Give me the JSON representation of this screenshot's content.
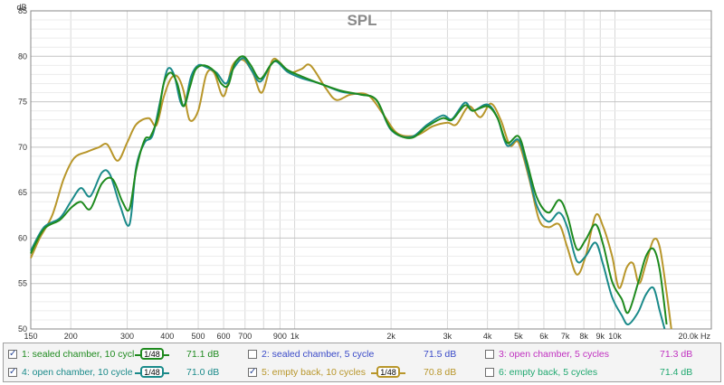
{
  "chart_data": {
    "type": "line",
    "title": "SPL",
    "y_unit_label": "dB",
    "x_scale": "log",
    "xlim": [
      150,
      20000
    ],
    "ylim": [
      50,
      85
    ],
    "y_ticks": [
      50,
      55,
      60,
      65,
      70,
      75,
      80,
      85
    ],
    "x_ticks": [
      {
        "value": 150,
        "label": "150"
      },
      {
        "value": 200,
        "label": "200"
      },
      {
        "value": 300,
        "label": "300"
      },
      {
        "value": 400,
        "label": "400"
      },
      {
        "value": 500,
        "label": "500"
      },
      {
        "value": 600,
        "label": "600"
      },
      {
        "value": 700,
        "label": "700"
      },
      {
        "value": 900,
        "label": "900"
      },
      {
        "value": 1000,
        "label": "1k"
      },
      {
        "value": 2000,
        "label": "2k"
      },
      {
        "value": 3000,
        "label": "3k"
      },
      {
        "value": 4000,
        "label": "4k"
      },
      {
        "value": 5000,
        "label": "5k"
      },
      {
        "value": 6000,
        "label": "6k"
      },
      {
        "value": 7000,
        "label": "7k"
      },
      {
        "value": 8000,
        "label": "8k"
      },
      {
        "value": 9000,
        "label": "9k"
      },
      {
        "value": 10000,
        "label": "10k"
      },
      {
        "value": 20000,
        "label": "20.0k Hz"
      }
    ],
    "grid": true,
    "series": [
      {
        "name": "1: sealed chamber, 10 cycl",
        "color": "#1e8a1e",
        "points": [
          [
            150,
            58.3
          ],
          [
            165,
            61.0
          ],
          [
            185,
            62.0
          ],
          [
            200,
            63.3
          ],
          [
            215,
            64.0
          ],
          [
            230,
            63.2
          ],
          [
            250,
            66.0
          ],
          [
            270,
            66.5
          ],
          [
            290,
            64.0
          ],
          [
            305,
            63.2
          ],
          [
            320,
            67.5
          ],
          [
            340,
            70.8
          ],
          [
            355,
            71.2
          ],
          [
            375,
            73.5
          ],
          [
            390,
            77.0
          ],
          [
            410,
            78.2
          ],
          [
            430,
            77.0
          ],
          [
            450,
            74.5
          ],
          [
            470,
            76.5
          ],
          [
            490,
            78.5
          ],
          [
            520,
            79.0
          ],
          [
            560,
            78.4
          ],
          [
            590,
            77.0
          ],
          [
            620,
            76.8
          ],
          [
            650,
            79.2
          ],
          [
            690,
            80.0
          ],
          [
            730,
            79.0
          ],
          [
            780,
            77.5
          ],
          [
            840,
            79.0
          ],
          [
            880,
            79.5
          ],
          [
            950,
            78.5
          ],
          [
            1050,
            77.8
          ],
          [
            1200,
            77.0
          ],
          [
            1400,
            76.2
          ],
          [
            1600,
            75.8
          ],
          [
            1800,
            75.2
          ],
          [
            2000,
            72.0
          ],
          [
            2300,
            71.0
          ],
          [
            2600,
            72.3
          ],
          [
            2900,
            73.2
          ],
          [
            3100,
            73.0
          ],
          [
            3400,
            74.6
          ],
          [
            3600,
            74.0
          ],
          [
            4000,
            74.5
          ],
          [
            4300,
            73.2
          ],
          [
            4600,
            70.5
          ],
          [
            5000,
            71.2
          ],
          [
            5300,
            68.5
          ],
          [
            5700,
            64.5
          ],
          [
            6200,
            62.8
          ],
          [
            6700,
            64.2
          ],
          [
            7100,
            62.5
          ],
          [
            7600,
            58.8
          ],
          [
            8100,
            59.8
          ],
          [
            8700,
            61.5
          ],
          [
            9200,
            59.2
          ],
          [
            9800,
            55.2
          ],
          [
            10500,
            53.3
          ],
          [
            11000,
            51.8
          ],
          [
            11800,
            55.0
          ],
          [
            12500,
            58.0
          ],
          [
            13200,
            58.8
          ],
          [
            13800,
            56.5
          ],
          [
            14500,
            50.5
          ]
        ]
      },
      {
        "name": "2: sealed chamber, 5 cycle",
        "color": "#3a4ac8",
        "points": []
      },
      {
        "name": "3: open chamber, 5 cycles",
        "color": "#c030c0",
        "points": []
      },
      {
        "name": "4: open chamber, 10 cycle",
        "color": "#1a8a8a",
        "points": [
          [
            150,
            58.6
          ],
          [
            165,
            61.2
          ],
          [
            185,
            62.2
          ],
          [
            200,
            64.0
          ],
          [
            215,
            65.5
          ],
          [
            230,
            64.6
          ],
          [
            250,
            67.2
          ],
          [
            265,
            67.0
          ],
          [
            285,
            63.6
          ],
          [
            305,
            61.5
          ],
          [
            320,
            67.8
          ],
          [
            340,
            70.5
          ],
          [
            360,
            71.3
          ],
          [
            380,
            75.0
          ],
          [
            400,
            78.5
          ],
          [
            420,
            78.0
          ],
          [
            440,
            75.0
          ],
          [
            455,
            74.8
          ],
          [
            475,
            77.8
          ],
          [
            500,
            79.0
          ],
          [
            530,
            78.8
          ],
          [
            570,
            78.2
          ],
          [
            610,
            77.0
          ],
          [
            640,
            78.5
          ],
          [
            690,
            79.8
          ],
          [
            730,
            78.6
          ],
          [
            780,
            77.2
          ],
          [
            840,
            79.0
          ],
          [
            880,
            79.4
          ],
          [
            950,
            78.3
          ],
          [
            1050,
            77.6
          ],
          [
            1200,
            77.0
          ],
          [
            1400,
            76.1
          ],
          [
            1600,
            75.8
          ],
          [
            1800,
            75.2
          ],
          [
            2000,
            71.9
          ],
          [
            2300,
            71.1
          ],
          [
            2600,
            72.5
          ],
          [
            2900,
            73.5
          ],
          [
            3100,
            73.1
          ],
          [
            3400,
            74.9
          ],
          [
            3600,
            74.0
          ],
          [
            4000,
            74.7
          ],
          [
            4300,
            73.2
          ],
          [
            4600,
            70.2
          ],
          [
            5000,
            70.8
          ],
          [
            5300,
            68.0
          ],
          [
            5700,
            63.6
          ],
          [
            6200,
            61.8
          ],
          [
            6700,
            62.8
          ],
          [
            7100,
            61.2
          ],
          [
            7600,
            57.5
          ],
          [
            8100,
            58.0
          ],
          [
            8700,
            59.5
          ],
          [
            9200,
            57.0
          ],
          [
            9800,
            53.5
          ],
          [
            10500,
            51.5
          ],
          [
            11000,
            50.5
          ],
          [
            11800,
            51.8
          ],
          [
            12500,
            53.8
          ],
          [
            13200,
            54.5
          ],
          [
            13800,
            52.0
          ],
          [
            14300,
            50.0
          ]
        ]
      },
      {
        "name": "5: empty back, 10 cycles",
        "color": "#b8962a",
        "points": [
          [
            150,
            57.8
          ],
          [
            160,
            60.0
          ],
          [
            175,
            62.5
          ],
          [
            190,
            66.5
          ],
          [
            205,
            68.8
          ],
          [
            225,
            69.5
          ],
          [
            245,
            70.0
          ],
          [
            260,
            70.3
          ],
          [
            280,
            68.5
          ],
          [
            300,
            70.5
          ],
          [
            320,
            72.5
          ],
          [
            350,
            73.2
          ],
          [
            370,
            72.4
          ],
          [
            390,
            75.5
          ],
          [
            410,
            77.5
          ],
          [
            430,
            77.8
          ],
          [
            450,
            76.2
          ],
          [
            470,
            73.0
          ],
          [
            500,
            74.0
          ],
          [
            530,
            78.0
          ],
          [
            560,
            78.2
          ],
          [
            600,
            75.6
          ],
          [
            640,
            79.0
          ],
          [
            690,
            79.6
          ],
          [
            740,
            78.2
          ],
          [
            790,
            76.0
          ],
          [
            850,
            79.5
          ],
          [
            900,
            79.3
          ],
          [
            960,
            78.2
          ],
          [
            1050,
            78.6
          ],
          [
            1120,
            79.0
          ],
          [
            1250,
            76.5
          ],
          [
            1350,
            75.2
          ],
          [
            1500,
            75.8
          ],
          [
            1700,
            75.7
          ],
          [
            1900,
            73.5
          ],
          [
            2100,
            71.5
          ],
          [
            2400,
            71.3
          ],
          [
            2700,
            72.3
          ],
          [
            3000,
            72.7
          ],
          [
            3200,
            72.5
          ],
          [
            3500,
            74.5
          ],
          [
            3800,
            73.3
          ],
          [
            4100,
            74.8
          ],
          [
            4400,
            73.0
          ],
          [
            4700,
            70.2
          ],
          [
            5000,
            70.5
          ],
          [
            5400,
            66.5
          ],
          [
            5800,
            62.0
          ],
          [
            6200,
            61.2
          ],
          [
            6700,
            61.5
          ],
          [
            7100,
            59.0
          ],
          [
            7600,
            56.0
          ],
          [
            8100,
            58.0
          ],
          [
            8700,
            62.5
          ],
          [
            9200,
            61.2
          ],
          [
            9800,
            58.0
          ],
          [
            10300,
            54.5
          ],
          [
            10900,
            56.8
          ],
          [
            11400,
            57.2
          ],
          [
            11900,
            55.0
          ],
          [
            12500,
            57.2
          ],
          [
            13200,
            59.8
          ],
          [
            13800,
            59.0
          ],
          [
            14500,
            54.0
          ],
          [
            15000,
            50.0
          ]
        ]
      },
      {
        "name": "6: empty back, 5 cycles",
        "color": "#20a870",
        "points": []
      }
    ]
  },
  "legend": {
    "smoothing_label": "1/48",
    "items": [
      {
        "label": "1: sealed chamber, 10 cycl",
        "value": "71.1 dB",
        "checked": true,
        "show_smoothing": true,
        "color": "#1e8a1e"
      },
      {
        "label": "2: sealed chamber, 5 cycle",
        "value": "71.5 dB",
        "checked": false,
        "show_smoothing": false,
        "color": "#3a4ac8"
      },
      {
        "label": "3: open chamber, 5 cycles",
        "value": "71.3 dB",
        "checked": false,
        "show_smoothing": false,
        "color": "#c030c0"
      },
      {
        "label": "4: open chamber, 10 cycle",
        "value": "71.0 dB",
        "checked": true,
        "show_smoothing": true,
        "color": "#1a8a8a"
      },
      {
        "label": "5: empty back, 10 cycles",
        "value": "70.8 dB",
        "checked": true,
        "show_smoothing": true,
        "color": "#b8962a"
      },
      {
        "label": "6: empty back, 5 cycles",
        "value": "71.4 dB",
        "checked": false,
        "show_smoothing": false,
        "color": "#20a870"
      }
    ]
  }
}
